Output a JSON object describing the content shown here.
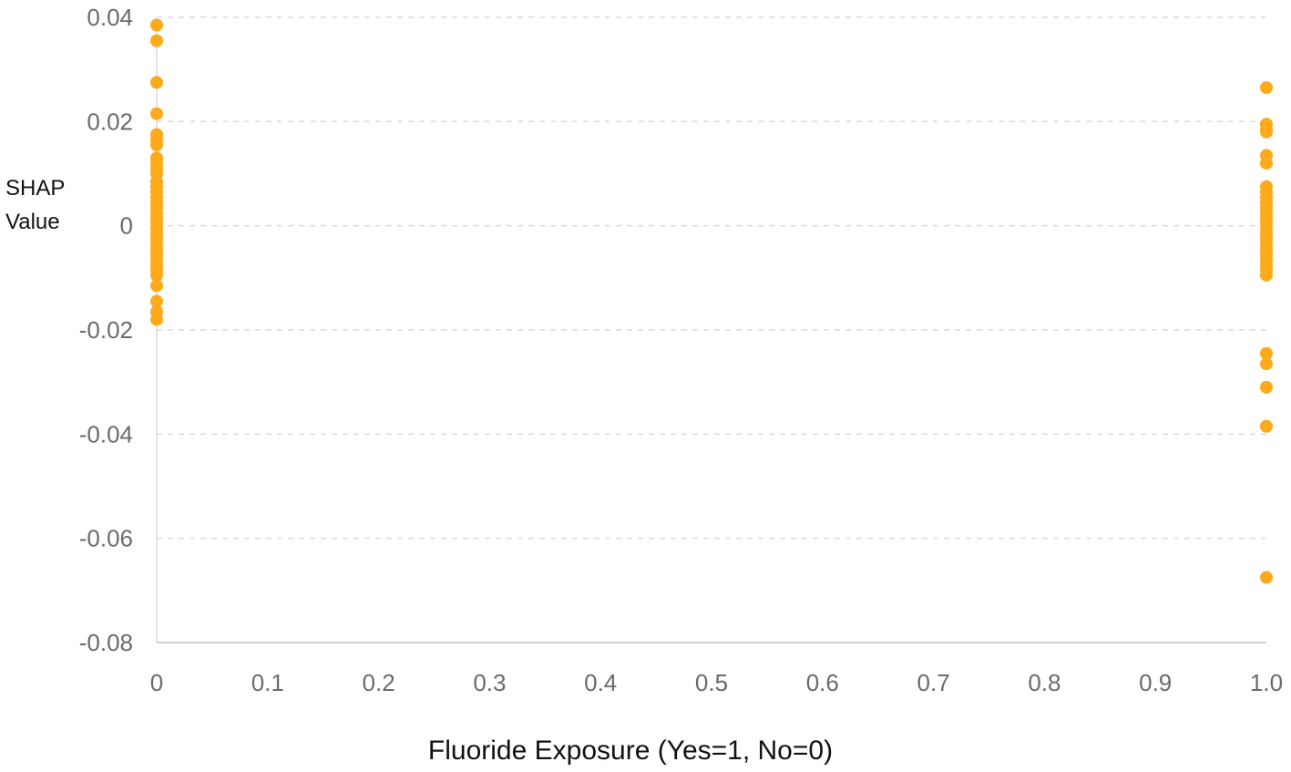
{
  "chart_data": {
    "type": "scatter",
    "title": "",
    "xlabel": "Fluoride Exposure (Yes=1, No=0)",
    "ylabel_lines": [
      "SHAP",
      "Value"
    ],
    "xlim": [
      0,
      1.0
    ],
    "ylim": [
      -0.08,
      0.04
    ],
    "x_ticks": [
      0,
      0.1,
      0.2,
      0.3,
      0.4,
      0.5,
      0.6,
      0.7,
      0.8,
      0.9,
      1.0
    ],
    "x_tick_labels": [
      "0",
      "0.1",
      "0.2",
      "0.3",
      "0.4",
      "0.5",
      "0.6",
      "0.7",
      "0.8",
      "0.9",
      "1.0"
    ],
    "y_ticks": [
      0.04,
      0.02,
      0,
      -0.02,
      -0.04,
      -0.06,
      -0.08
    ],
    "y_tick_labels": [
      "0.04",
      "0.02",
      "0",
      "-0.02",
      "-0.04",
      "-0.06",
      "-0.08"
    ],
    "grid": "horizontal dashed",
    "marker_color": "#FBAA19",
    "points": [
      {
        "x": 0,
        "y": 0.0385
      },
      {
        "x": 0,
        "y": 0.0355
      },
      {
        "x": 0,
        "y": 0.0275
      },
      {
        "x": 0,
        "y": 0.0215
      },
      {
        "x": 0,
        "y": 0.0175
      },
      {
        "x": 0,
        "y": 0.0165
      },
      {
        "x": 0,
        "y": 0.0155
      },
      {
        "x": 0,
        "y": 0.013
      },
      {
        "x": 0,
        "y": 0.012
      },
      {
        "x": 0,
        "y": 0.011
      },
      {
        "x": 0,
        "y": 0.01
      },
      {
        "x": 0,
        "y": 0.0085
      },
      {
        "x": 0,
        "y": 0.0075
      },
      {
        "x": 0,
        "y": 0.0065
      },
      {
        "x": 0,
        "y": 0.0055
      },
      {
        "x": 0,
        "y": 0.0045
      },
      {
        "x": 0,
        "y": 0.0035
      },
      {
        "x": 0,
        "y": 0.0025
      },
      {
        "x": 0,
        "y": 0.0015
      },
      {
        "x": 0,
        "y": 0.0005
      },
      {
        "x": 0,
        "y": -0.0005
      },
      {
        "x": 0,
        "y": -0.0015
      },
      {
        "x": 0,
        "y": -0.0025
      },
      {
        "x": 0,
        "y": -0.0035
      },
      {
        "x": 0,
        "y": -0.0045
      },
      {
        "x": 0,
        "y": -0.0055
      },
      {
        "x": 0,
        "y": -0.0065
      },
      {
        "x": 0,
        "y": -0.0075
      },
      {
        "x": 0,
        "y": -0.0085
      },
      {
        "x": 0,
        "y": -0.0095
      },
      {
        "x": 0,
        "y": -0.0115
      },
      {
        "x": 0,
        "y": -0.0145
      },
      {
        "x": 0,
        "y": -0.0165
      },
      {
        "x": 0,
        "y": -0.018
      },
      {
        "x": 1.0,
        "y": 0.0265
      },
      {
        "x": 1.0,
        "y": 0.0195
      },
      {
        "x": 1.0,
        "y": 0.0185
      },
      {
        "x": 1.0,
        "y": 0.018
      },
      {
        "x": 1.0,
        "y": 0.0135
      },
      {
        "x": 1.0,
        "y": 0.012
      },
      {
        "x": 1.0,
        "y": 0.0075
      },
      {
        "x": 1.0,
        "y": 0.0065
      },
      {
        "x": 1.0,
        "y": 0.0055
      },
      {
        "x": 1.0,
        "y": 0.0045
      },
      {
        "x": 1.0,
        "y": 0.0035
      },
      {
        "x": 1.0,
        "y": 0.0025
      },
      {
        "x": 1.0,
        "y": 0.0015
      },
      {
        "x": 1.0,
        "y": 0.0005
      },
      {
        "x": 1.0,
        "y": -0.0005
      },
      {
        "x": 1.0,
        "y": -0.0015
      },
      {
        "x": 1.0,
        "y": -0.0025
      },
      {
        "x": 1.0,
        "y": -0.0035
      },
      {
        "x": 1.0,
        "y": -0.0045
      },
      {
        "x": 1.0,
        "y": -0.0055
      },
      {
        "x": 1.0,
        "y": -0.0065
      },
      {
        "x": 1.0,
        "y": -0.0075
      },
      {
        "x": 1.0,
        "y": -0.0085
      },
      {
        "x": 1.0,
        "y": -0.0095
      },
      {
        "x": 1.0,
        "y": -0.0245
      },
      {
        "x": 1.0,
        "y": -0.0265
      },
      {
        "x": 1.0,
        "y": -0.031
      },
      {
        "x": 1.0,
        "y": -0.0385
      },
      {
        "x": 1.0,
        "y": -0.0675
      }
    ]
  }
}
